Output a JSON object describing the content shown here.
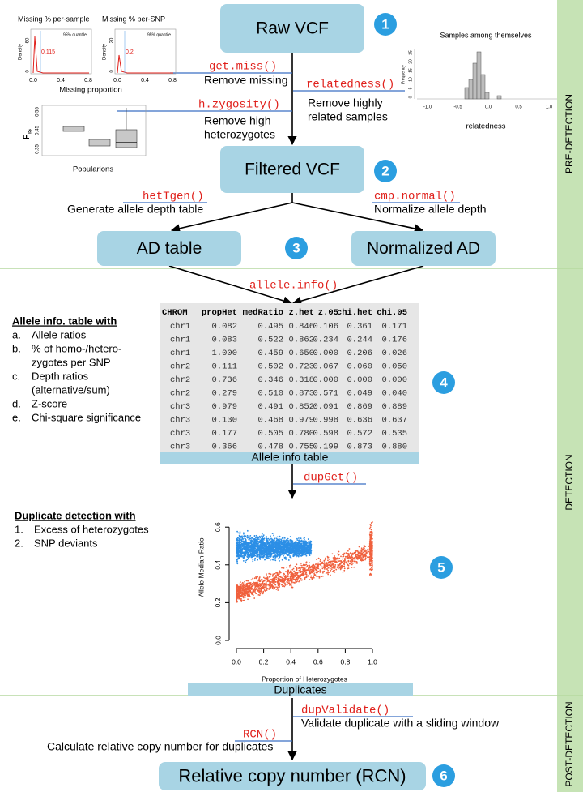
{
  "stages": {
    "pre_detection": "PRE-DETECTION",
    "detection": "DETECTION",
    "post_detection": "POST-DETECTION"
  },
  "nodes": [
    {
      "label": "Raw VCF"
    },
    {
      "label": "Filtered VCF"
    },
    {
      "label": "AD table"
    },
    {
      "label": "Normalized AD"
    },
    {
      "label": "Relative copy number (RCN)"
    }
  ],
  "badges": [
    "1",
    "2",
    "3",
    "4",
    "5",
    "6"
  ],
  "functions": [
    {
      "name": "get.miss()",
      "description": [
        "Remove missing"
      ]
    },
    {
      "name": "relatedness()",
      "description": [
        "Remove highly",
        "related samples"
      ]
    },
    {
      "name": "h.zygosity()",
      "description": [
        "Remove high",
        "heterozygotes"
      ]
    },
    {
      "name": "hetTgen()",
      "description": [
        "Generate allele depth table"
      ]
    },
    {
      "name": "cmp.normal()",
      "description": [
        "Normalize allele depth"
      ]
    },
    {
      "name": "allele.info()",
      "description": []
    },
    {
      "name": "dupGet()",
      "description": []
    },
    {
      "name": "dupValidate()",
      "description": [
        "Validate duplicate with a sliding window"
      ]
    },
    {
      "name": "RCN()",
      "description": [
        "Calculate relative copy number for duplicates"
      ]
    }
  ],
  "allele_info": {
    "title": "Allele info. table with",
    "items": [
      {
        "marker": "a.",
        "lines": [
          "Allele ratios"
        ]
      },
      {
        "marker": "b.",
        "lines": [
          "% of homo-/hetero-",
          "zygotes per SNP"
        ]
      },
      {
        "marker": "c.",
        "lines": [
          "Depth ratios",
          "(alternative/sum)"
        ]
      },
      {
        "marker": "d.",
        "lines": [
          "Z-score"
        ]
      },
      {
        "marker": "e.",
        "lines": [
          "Chi-square significance"
        ]
      }
    ]
  },
  "table": {
    "columns": [
      "CHROM",
      "propHet",
      "medRatio",
      "z.het",
      "z.05",
      "chi.het",
      "chi.05"
    ],
    "rows": [
      [
        "chr1",
        "0.082",
        "0.495",
        "0.846",
        "0.106",
        "0.361",
        "0.171"
      ],
      [
        "chr1",
        "0.083",
        "0.522",
        "0.862",
        "0.234",
        "0.244",
        "0.176"
      ],
      [
        "chr1",
        "1.000",
        "0.459",
        "0.650",
        "0.000",
        "0.206",
        "0.026"
      ],
      [
        "chr2",
        "0.111",
        "0.502",
        "0.723",
        "0.067",
        "0.060",
        "0.050"
      ],
      [
        "chr2",
        "0.736",
        "0.346",
        "0.318",
        "0.000",
        "0.000",
        "0.000"
      ],
      [
        "chr2",
        "0.279",
        "0.510",
        "0.873",
        "0.571",
        "0.049",
        "0.040"
      ],
      [
        "chr3",
        "0.979",
        "0.491",
        "0.852",
        "0.091",
        "0.869",
        "0.889"
      ],
      [
        "chr3",
        "0.130",
        "0.468",
        "0.979",
        "0.998",
        "0.636",
        "0.637"
      ],
      [
        "chr3",
        "0.177",
        "0.505",
        "0.780",
        "0.598",
        "0.572",
        "0.535"
      ],
      [
        "chr3",
        "0.366",
        "0.478",
        "0.755",
        "0.199",
        "0.873",
        "0.880"
      ]
    ],
    "caption": "Allele info table"
  },
  "duplicate_detection": {
    "title": "Duplicate detection with",
    "items": [
      {
        "marker": "1.",
        "lines": [
          "Excess of heterozygotes"
        ]
      },
      {
        "marker": "2.",
        "lines": [
          "SNP deviants"
        ]
      }
    ]
  },
  "scatter": {
    "ylabel": "Allele Median Ratio",
    "xlabel": "Proportion of Heterozygotes",
    "xticks": [
      "0.0",
      "0.2",
      "0.4",
      "0.6",
      "0.8",
      "1.0"
    ],
    "yticks": [
      "0.0",
      "0.2",
      "0.4",
      "0.6"
    ],
    "caption": "Duplicates"
  },
  "missing_plots": {
    "titles": [
      "Missing % per-sample",
      "Missing % per-SNP"
    ],
    "xlabel": "Missing proportion",
    "ylabel": "Density",
    "yticks": [
      [
        "0",
        "60"
      ],
      [
        "0",
        "20"
      ]
    ],
    "xticks": [
      "0.0",
      "0.4",
      "0.8"
    ],
    "legend": "95% quantile",
    "annotations": [
      "0.115",
      "0.2"
    ]
  },
  "relatedness_plot": {
    "title": "Samples among themselves",
    "xlabel": "relatedness",
    "ylabel": "Frequency",
    "xticks": [
      "-1.0",
      "-0.5",
      "0.0",
      "0.5",
      "1.0"
    ],
    "yticks": [
      "0",
      "5",
      "10",
      "15",
      "20",
      "25"
    ]
  },
  "fis_plot": {
    "ylabel": "F",
    "ylabel_sub": "IS",
    "xlabel": "Popularions",
    "yticks": [
      "0.35",
      "0.45",
      "0.55"
    ]
  }
}
